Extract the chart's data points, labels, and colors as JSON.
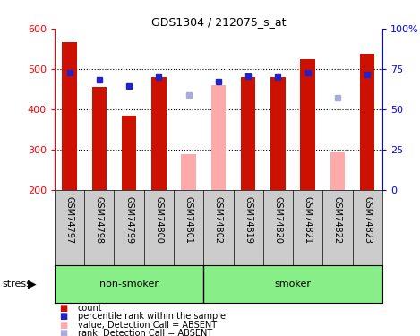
{
  "title": "GDS1304 / 212075_s_at",
  "samples": [
    "GSM74797",
    "GSM74798",
    "GSM74799",
    "GSM74800",
    "GSM74801",
    "GSM74802",
    "GSM74819",
    "GSM74820",
    "GSM74821",
    "GSM74822",
    "GSM74823"
  ],
  "bar_values": [
    567,
    455,
    385,
    480,
    null,
    null,
    480,
    480,
    524,
    null,
    538
  ],
  "bar_absent_values": [
    null,
    null,
    null,
    null,
    288,
    460,
    null,
    null,
    null,
    292,
    null
  ],
  "rank_values": [
    490,
    472,
    458,
    480,
    null,
    468,
    483,
    480,
    491,
    null,
    486
  ],
  "rank_absent_values": [
    null,
    null,
    null,
    null,
    435,
    null,
    null,
    null,
    null,
    428,
    null
  ],
  "ylim": [
    200,
    600
  ],
  "y2lim": [
    0,
    100
  ],
  "yticks": [
    200,
    300,
    400,
    500,
    600
  ],
  "y2ticks": [
    0,
    25,
    50,
    75,
    100
  ],
  "bar_color": "#cc1100",
  "bar_absent_color": "#ffaaaa",
  "rank_color": "#2222cc",
  "rank_absent_color": "#aaaadd",
  "group1_label": "non-smoker",
  "group2_label": "smoker",
  "group1_indices": [
    0,
    1,
    2,
    3,
    4
  ],
  "group2_indices": [
    5,
    6,
    7,
    8,
    9,
    10
  ],
  "stress_label": "stress",
  "legend_items": [
    {
      "color": "#cc1100",
      "label": "count"
    },
    {
      "color": "#2222cc",
      "label": "percentile rank within the sample"
    },
    {
      "color": "#ffaaaa",
      "label": "value, Detection Call = ABSENT"
    },
    {
      "color": "#aaaadd",
      "label": "rank, Detection Call = ABSENT"
    }
  ],
  "bg_color": "#ffffff",
  "xlabel_area_color": "#cccccc",
  "group_area_color": "#88ee88",
  "grid_dotted_at": [
    300,
    400,
    500
  ],
  "y2tick_labels": [
    "0",
    "25",
    "50",
    "75",
    "100%"
  ]
}
